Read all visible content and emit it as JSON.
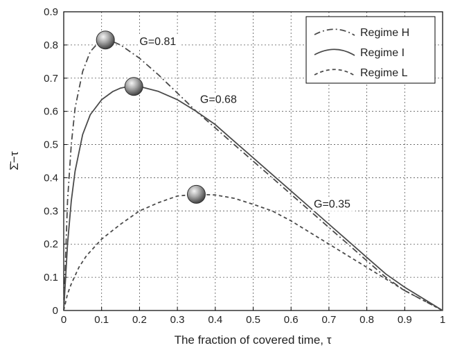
{
  "chart_data": {
    "type": "line",
    "xlabel": "The fraction of covered time, τ",
    "ylabel": "Σ̄−τ",
    "xlim": [
      0,
      1
    ],
    "ylim": [
      0,
      0.9
    ],
    "xticks": [
      "0",
      "0.1",
      "0.2",
      "0.3",
      "0.4",
      "0.5",
      "0.6",
      "0.7",
      "0.8",
      "0.9",
      "1"
    ],
    "yticks": [
      "0",
      "0.1",
      "0.2",
      "0.3",
      "0.4",
      "0.5",
      "0.6",
      "0.7",
      "0.8",
      "0.9"
    ],
    "grid": true,
    "legend_position": "top-right",
    "series": [
      {
        "name": "Regime H",
        "style": "dashdot",
        "x": [
          0,
          0.01,
          0.02,
          0.03,
          0.05,
          0.07,
          0.09,
          0.11,
          0.13,
          0.15,
          0.2,
          0.25,
          0.3,
          0.35,
          0.4,
          0.45,
          0.5,
          0.55,
          0.6,
          0.65,
          0.7,
          0.75,
          0.8,
          0.85,
          0.9,
          0.95,
          1.0
        ],
        "y": [
          0,
          0.33,
          0.5,
          0.61,
          0.72,
          0.78,
          0.805,
          0.815,
          0.81,
          0.8,
          0.76,
          0.71,
          0.655,
          0.6,
          0.55,
          0.5,
          0.45,
          0.4,
          0.35,
          0.3,
          0.25,
          0.2,
          0.15,
          0.1,
          0.06,
          0.03,
          0
        ]
      },
      {
        "name": "Regime I",
        "style": "solid",
        "x": [
          0,
          0.01,
          0.02,
          0.03,
          0.05,
          0.07,
          0.1,
          0.13,
          0.15,
          0.18,
          0.2,
          0.25,
          0.3,
          0.35,
          0.4,
          0.45,
          0.5,
          0.55,
          0.6,
          0.65,
          0.7,
          0.75,
          0.8,
          0.85,
          0.9,
          0.95,
          1.0
        ],
        "y": [
          0,
          0.2,
          0.33,
          0.42,
          0.53,
          0.59,
          0.635,
          0.66,
          0.67,
          0.677,
          0.675,
          0.66,
          0.635,
          0.6,
          0.56,
          0.51,
          0.46,
          0.41,
          0.36,
          0.31,
          0.26,
          0.21,
          0.16,
          0.11,
          0.07,
          0.035,
          0
        ]
      },
      {
        "name": "Regime L",
        "style": "dashed",
        "x": [
          0,
          0.01,
          0.02,
          0.04,
          0.06,
          0.08,
          0.1,
          0.15,
          0.2,
          0.25,
          0.3,
          0.35,
          0.4,
          0.45,
          0.5,
          0.55,
          0.6,
          0.65,
          0.7,
          0.75,
          0.8,
          0.85,
          0.9,
          0.95,
          1.0
        ],
        "y": [
          0,
          0.05,
          0.08,
          0.13,
          0.165,
          0.19,
          0.215,
          0.26,
          0.3,
          0.325,
          0.345,
          0.35,
          0.348,
          0.338,
          0.32,
          0.3,
          0.27,
          0.235,
          0.2,
          0.165,
          0.13,
          0.095,
          0.06,
          0.03,
          0
        ]
      }
    ],
    "markers": [
      {
        "x": 0.11,
        "y": 0.815
      },
      {
        "x": 0.185,
        "y": 0.675
      },
      {
        "x": 0.35,
        "y": 0.35
      }
    ],
    "annotations": [
      {
        "text": "G=0.81",
        "x": 0.2,
        "y": 0.8
      },
      {
        "text": "G=0.68",
        "x": 0.36,
        "y": 0.625
      },
      {
        "text": "G=0.35",
        "x": 0.66,
        "y": 0.31
      }
    ]
  }
}
